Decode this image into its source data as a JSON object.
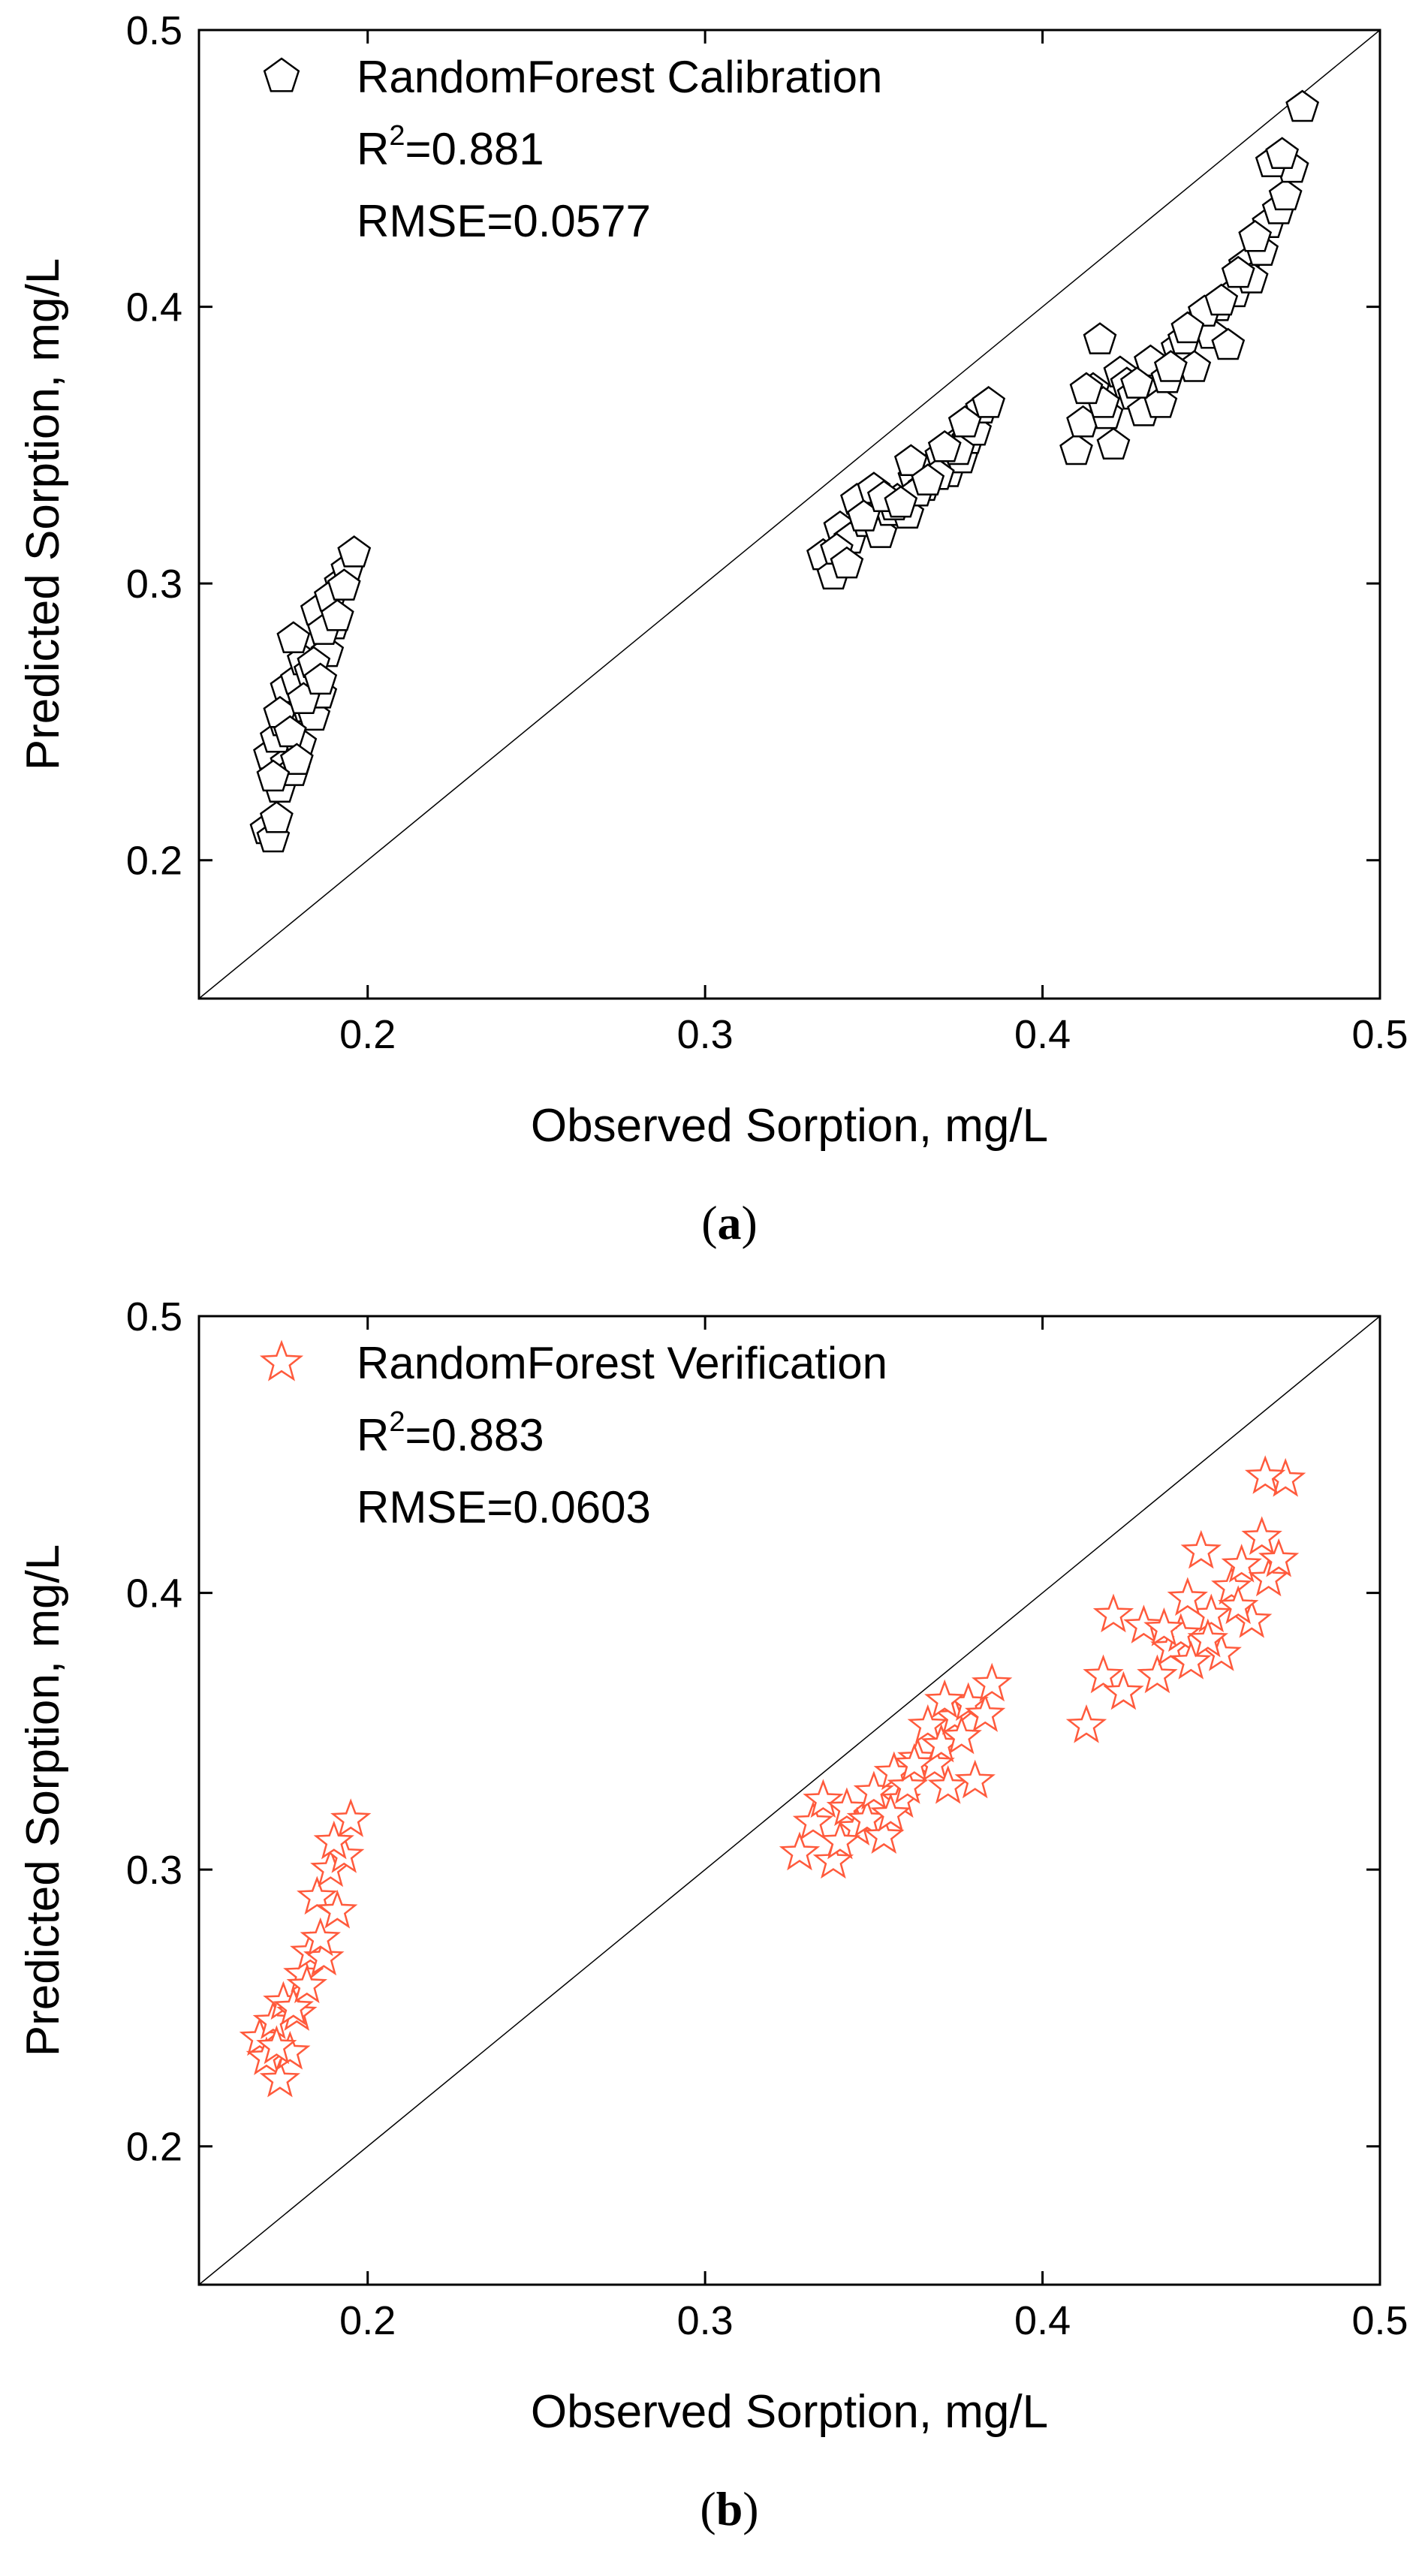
{
  "chart_data": [
    {
      "type": "scatter",
      "panel_label": "a",
      "xlabel": "Observed Sorption, mg/L",
      "ylabel": "Predicted Sorption, mg/L",
      "xlim": [
        0.15,
        0.5
      ],
      "ylim": [
        0.15,
        0.5
      ],
      "x_ticks": [
        0.2,
        0.3,
        0.4,
        0.5
      ],
      "y_ticks": [
        0.2,
        0.3,
        0.4,
        0.5
      ],
      "x_tick_labels": [
        "0.2",
        "0.3",
        "0.4",
        "0.5"
      ],
      "y_tick_labels": [
        "0.2",
        "0.3",
        "0.4",
        "0.5"
      ],
      "reference_line": "1:1",
      "marker": "pentagon",
      "color": "#000000",
      "legend": {
        "label": "RandomForest Calibration",
        "r2_prefix": "R",
        "r2_sup": "2",
        "r2_value": "=0.881",
        "rmse": "RMSE=0.0577"
      },
      "series": [
        {
          "name": "RandomForest Calibration",
          "x": [
            0.17,
            0.172,
            0.173,
            0.171,
            0.174,
            0.176,
            0.173,
            0.175,
            0.178,
            0.18,
            0.176,
            0.179,
            0.182,
            0.184,
            0.181,
            0.178,
            0.183,
            0.186,
            0.188,
            0.185,
            0.19,
            0.192,
            0.189,
            0.194,
            0.196,
            0.174,
            0.177,
            0.181,
            0.187,
            0.193,
            0.179,
            0.184,
            0.191,
            0.172,
            0.186,
            0.335,
            0.338,
            0.34,
            0.343,
            0.345,
            0.348,
            0.35,
            0.352,
            0.355,
            0.357,
            0.36,
            0.362,
            0.365,
            0.367,
            0.37,
            0.372,
            0.374,
            0.376,
            0.378,
            0.38,
            0.382,
            0.339,
            0.347,
            0.356,
            0.363,
            0.369,
            0.375,
            0.342,
            0.353,
            0.361,
            0.371,
            0.377,
            0.384,
            0.366,
            0.358,
            0.41,
            0.412,
            0.415,
            0.417,
            0.419,
            0.421,
            0.423,
            0.425,
            0.427,
            0.43,
            0.432,
            0.435,
            0.437,
            0.44,
            0.442,
            0.445,
            0.447,
            0.45,
            0.452,
            0.455,
            0.457,
            0.46,
            0.462,
            0.465,
            0.467,
            0.47,
            0.472,
            0.474,
            0.477,
            0.468,
            0.463,
            0.458,
            0.448,
            0.438,
            0.428,
            0.418,
            0.413,
            0.443,
            0.453,
            0.471
          ],
          "y": [
            0.211,
            0.208,
            0.215,
            0.238,
            0.226,
            0.235,
            0.244,
            0.25,
            0.232,
            0.242,
            0.262,
            0.265,
            0.255,
            0.252,
            0.272,
            0.28,
            0.268,
            0.26,
            0.275,
            0.29,
            0.285,
            0.3,
            0.295,
            0.305,
            0.311,
            0.253,
            0.246,
            0.258,
            0.283,
            0.299,
            0.236,
            0.271,
            0.288,
            0.23,
            0.265,
            0.31,
            0.303,
            0.32,
            0.316,
            0.33,
            0.322,
            0.334,
            0.318,
            0.326,
            0.33,
            0.325,
            0.338,
            0.335,
            0.342,
            0.346,
            0.34,
            0.35,
            0.345,
            0.352,
            0.355,
            0.363,
            0.312,
            0.324,
            0.328,
            0.333,
            0.339,
            0.348,
            0.307,
            0.331,
            0.344,
            0.349,
            0.358,
            0.365,
            0.337,
            0.329,
            0.348,
            0.358,
            0.37,
            0.388,
            0.361,
            0.35,
            0.376,
            0.372,
            0.368,
            0.362,
            0.38,
            0.365,
            0.374,
            0.385,
            0.388,
            0.378,
            0.395,
            0.39,
            0.4,
            0.386,
            0.405,
            0.415,
            0.41,
            0.42,
            0.43,
            0.435,
            0.44,
            0.45,
            0.472,
            0.452,
            0.425,
            0.412,
            0.398,
            0.378,
            0.372,
            0.365,
            0.37,
            0.392,
            0.402,
            0.455
          ]
        }
      ]
    },
    {
      "type": "scatter",
      "panel_label": "b",
      "xlabel": "Observed Sorption, mg/L",
      "ylabel": "Predicted Sorption, mg/L",
      "xlim": [
        0.15,
        0.5
      ],
      "ylim": [
        0.15,
        0.5
      ],
      "x_ticks": [
        0.2,
        0.3,
        0.4,
        0.5
      ],
      "y_ticks": [
        0.2,
        0.3,
        0.4,
        0.5
      ],
      "x_tick_labels": [
        "0.2",
        "0.3",
        "0.4",
        "0.5"
      ],
      "y_tick_labels": [
        "0.2",
        "0.3",
        "0.4",
        "0.5"
      ],
      "reference_line": "1:1",
      "marker": "star",
      "color": "#ff5a3c",
      "legend": {
        "label": "RandomForest Verification",
        "r2_prefix": "R",
        "r2_sup": "2",
        "r2_value": "=0.883",
        "rmse": "RMSE=0.0603"
      },
      "series": [
        {
          "name": "RandomForest Verification",
          "x": [
            0.168,
            0.17,
            0.172,
            0.174,
            0.175,
            0.177,
            0.179,
            0.181,
            0.183,
            0.185,
            0.187,
            0.189,
            0.191,
            0.193,
            0.195,
            0.173,
            0.178,
            0.186,
            0.19,
            0.182,
            0.328,
            0.332,
            0.335,
            0.338,
            0.342,
            0.345,
            0.348,
            0.35,
            0.353,
            0.356,
            0.358,
            0.36,
            0.363,
            0.366,
            0.368,
            0.37,
            0.372,
            0.374,
            0.376,
            0.378,
            0.38,
            0.383,
            0.385,
            0.34,
            0.355,
            0.362,
            0.371,
            0.413,
            0.418,
            0.421,
            0.424,
            0.43,
            0.434,
            0.438,
            0.441,
            0.444,
            0.447,
            0.45,
            0.453,
            0.456,
            0.459,
            0.462,
            0.465,
            0.467,
            0.47,
            0.472,
            0.449,
            0.443,
            0.436,
            0.458,
            0.466
          ],
          "y": [
            0.239,
            0.232,
            0.245,
            0.224,
            0.252,
            0.234,
            0.248,
            0.262,
            0.27,
            0.29,
            0.268,
            0.3,
            0.285,
            0.305,
            0.318,
            0.236,
            0.25,
            0.275,
            0.31,
            0.258,
            0.306,
            0.317,
            0.325,
            0.303,
            0.322,
            0.315,
            0.318,
            0.328,
            0.312,
            0.335,
            0.325,
            0.33,
            0.34,
            0.352,
            0.338,
            0.345,
            0.33,
            0.355,
            0.348,
            0.36,
            0.332,
            0.356,
            0.367,
            0.31,
            0.32,
            0.338,
            0.361,
            0.352,
            0.37,
            0.392,
            0.364,
            0.388,
            0.37,
            0.38,
            0.385,
            0.375,
            0.415,
            0.392,
            0.378,
            0.402,
            0.41,
            0.39,
            0.42,
            0.405,
            0.412,
            0.441,
            0.383,
            0.398,
            0.387,
            0.395,
            0.442
          ]
        }
      ]
    }
  ]
}
